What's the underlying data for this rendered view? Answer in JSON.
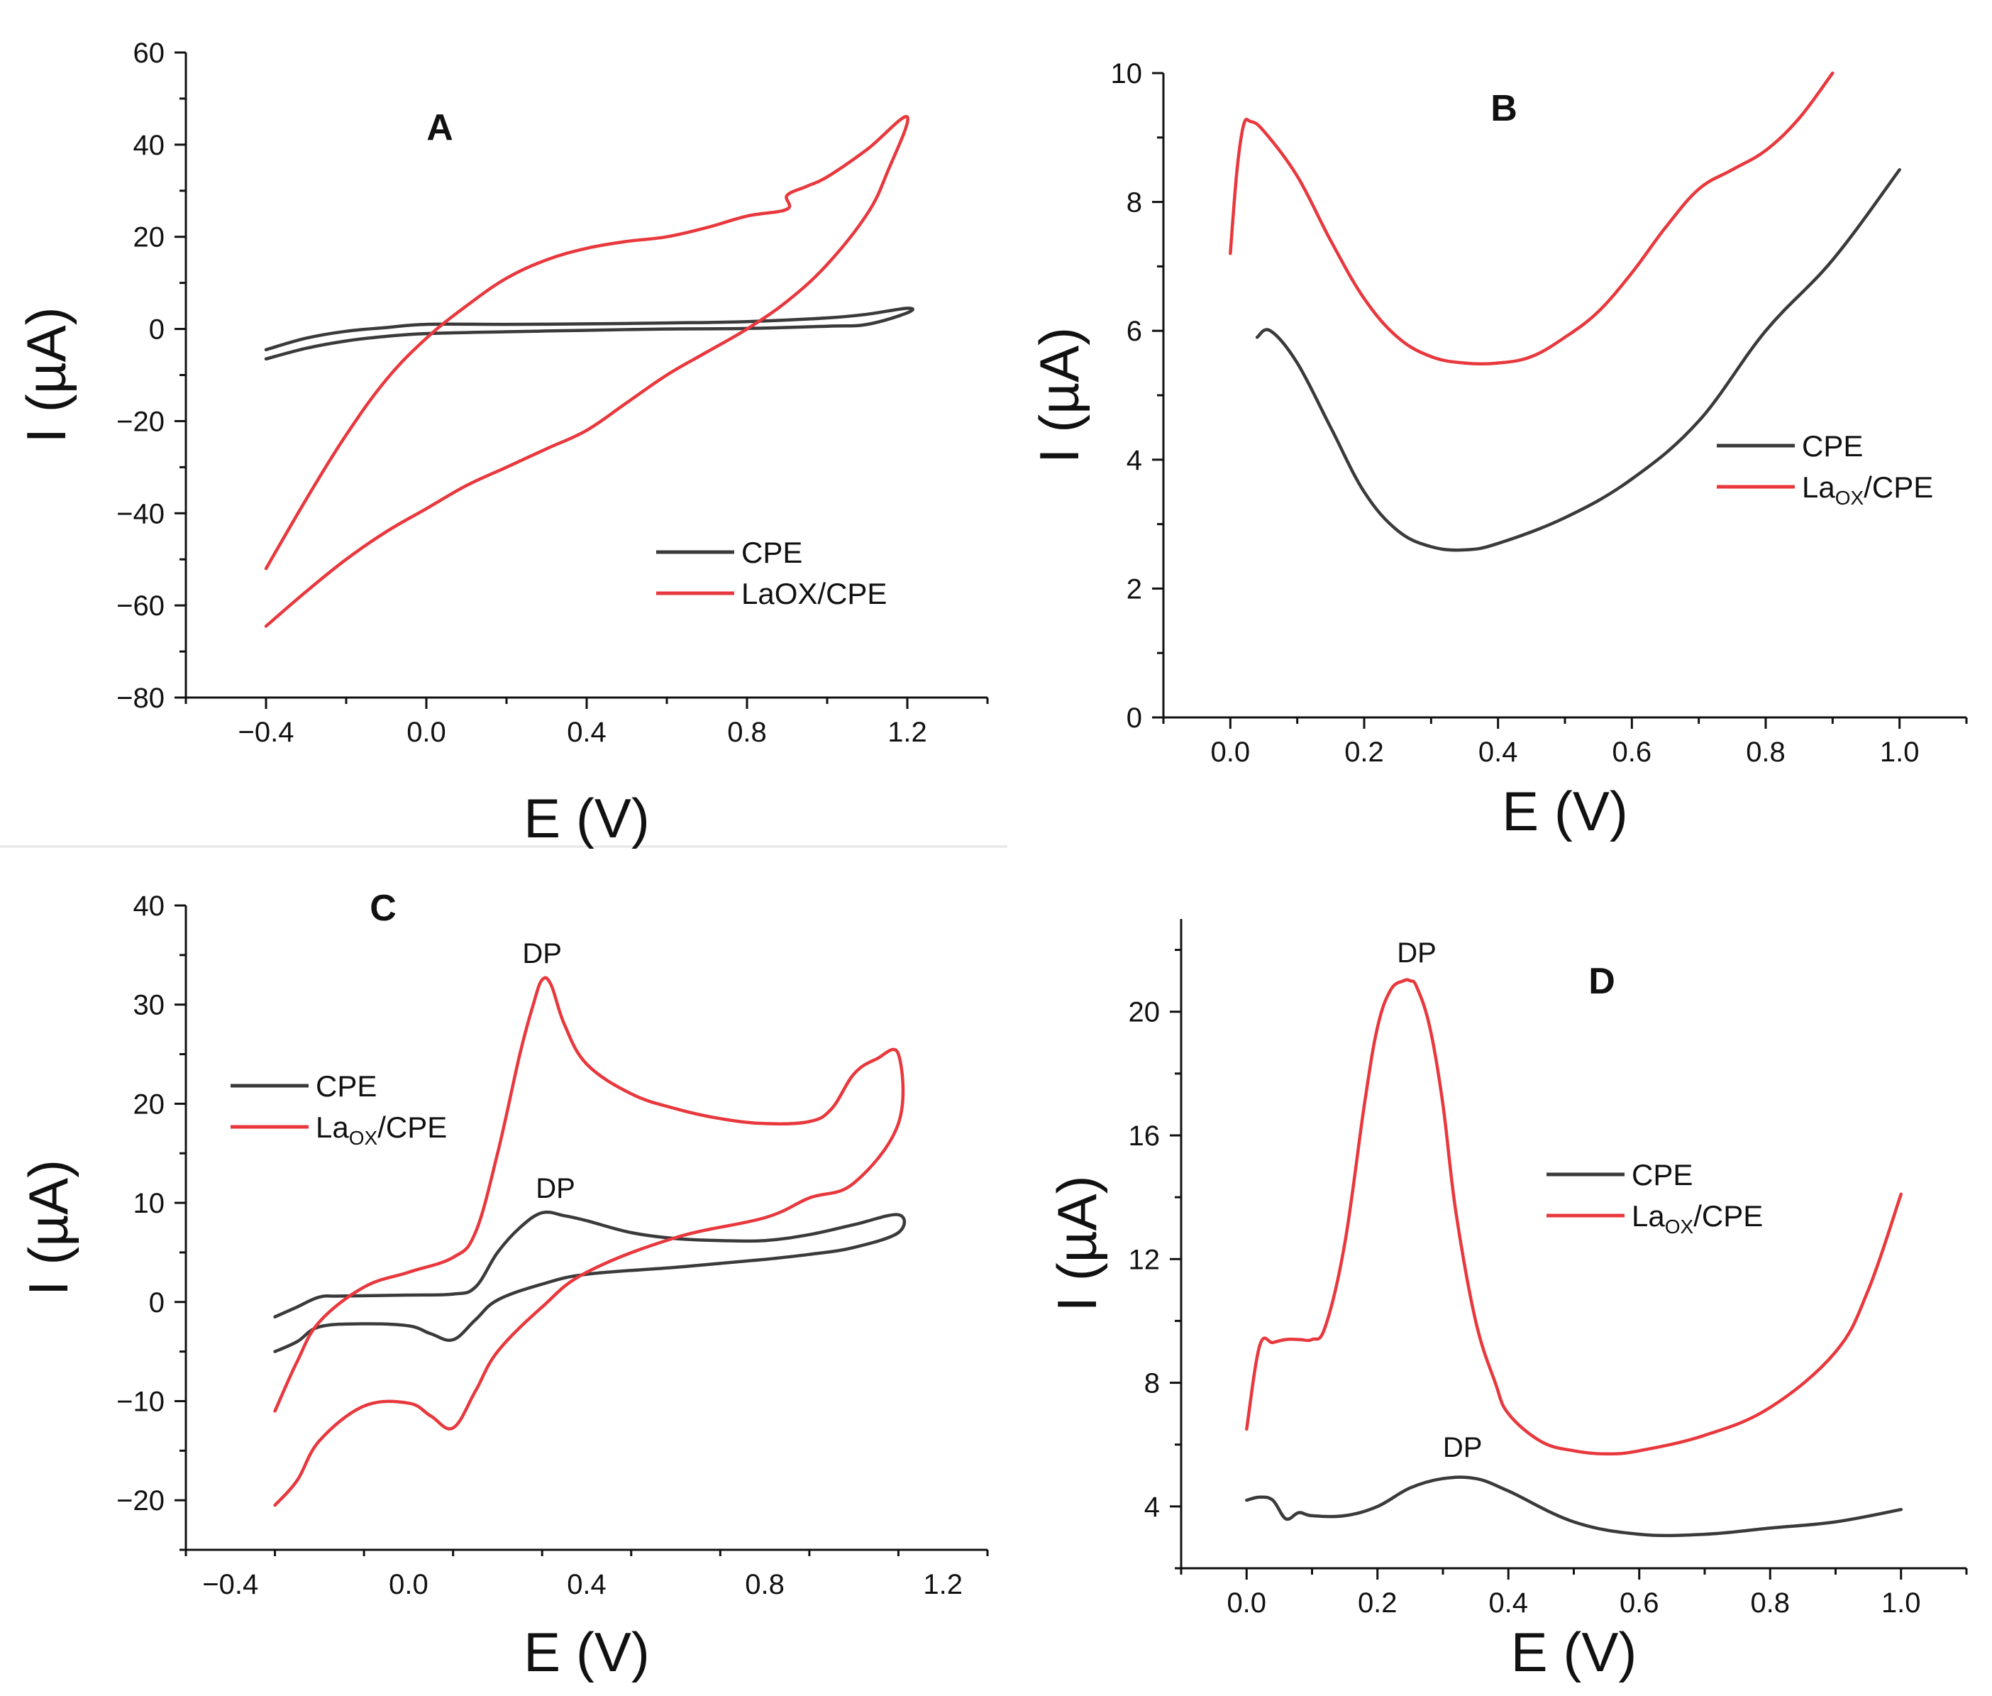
{
  "colors": {
    "CPE": "#3a3a3a",
    "LaOX/CPE": "#e8383d"
  },
  "chart_data": [
    {
      "id": "A",
      "type": "line",
      "panel_label": "A",
      "xlabel": "E (V)",
      "ylabel": "I (µA)",
      "xlim": [
        -0.6,
        1.4
      ],
      "ylim": [
        -80,
        60
      ],
      "xticks": [
        -0.4,
        0.0,
        0.4,
        0.8,
        1.2
      ],
      "xtick_labels": [
        "−0.4",
        "0.0",
        "0.4",
        "0.8",
        "1.2"
      ],
      "yticks": [
        -80,
        -60,
        -40,
        -20,
        0,
        20,
        40,
        60
      ],
      "ytick_labels": [
        "−80",
        "−60",
        "−40",
        "−20",
        "0",
        "20",
        "40",
        "60"
      ],
      "legend": {
        "position": "lower-right",
        "items": [
          {
            "label": "CPE",
            "color": "CPE"
          },
          {
            "label": "LaOX/CPE",
            "color": "LaOX/CPE"
          }
        ]
      },
      "annotations": [],
      "series": [
        {
          "name": "CPE",
          "color": "CPE",
          "x": [
            -0.4,
            -0.3,
            -0.2,
            -0.1,
            0.0,
            0.2,
            0.4,
            0.6,
            0.8,
            1.0,
            1.1,
            1.2,
            1.2,
            1.1,
            1.0,
            0.8,
            0.6,
            0.4,
            0.2,
            0.0,
            -0.1,
            -0.2,
            -0.3,
            -0.4
          ],
          "y": [
            -6.5,
            -4.2,
            -2.6,
            -1.6,
            -1,
            -0.6,
            -0.3,
            0,
            0.1,
            0.6,
            1,
            3.5,
            4.5,
            3.2,
            2.4,
            1.6,
            1.3,
            1.1,
            1.0,
            1.0,
            0.3,
            -0.5,
            -2,
            -4.5
          ]
        },
        {
          "name": "LaOX/CPE",
          "color": "LaOX/CPE",
          "x": [
            -0.4,
            -0.3,
            -0.2,
            -0.1,
            0.0,
            0.1,
            0.2,
            0.3,
            0.4,
            0.5,
            0.6,
            0.7,
            0.8,
            0.9,
            0.9,
            0.95,
            1.0,
            1.1,
            1.2,
            1.15,
            1.1,
            1.0,
            0.9,
            0.8,
            0.7,
            0.6,
            0.5,
            0.4,
            0.3,
            0.2,
            0.1,
            0.0,
            -0.1,
            -0.2,
            -0.3,
            -0.4
          ],
          "y": [
            -52,
            -37,
            -23,
            -11,
            -2,
            5,
            11,
            15,
            17.5,
            19,
            20,
            22,
            24.5,
            26,
            29,
            31,
            33,
            39,
            46,
            34,
            25,
            14,
            6,
            0,
            -5,
            -10,
            -16,
            -22,
            -26,
            -30,
            -34,
            -39,
            -44,
            -50,
            -57,
            -64.5
          ]
        }
      ]
    },
    {
      "id": "B",
      "type": "line",
      "panel_label": "B",
      "xlabel": "E (V)",
      "ylabel": "I (µA)",
      "xlim": [
        -0.1,
        1.1
      ],
      "ylim": [
        0,
        10
      ],
      "xticks": [
        0.0,
        0.2,
        0.4,
        0.6,
        0.8,
        1.0
      ],
      "xtick_labels": [
        "0.0",
        "0.2",
        "0.4",
        "0.6",
        "0.8",
        "1.0"
      ],
      "yticks": [
        0,
        2,
        4,
        6,
        8,
        10
      ],
      "ytick_labels": [
        "0",
        "2",
        "4",
        "6",
        "8",
        "10"
      ],
      "legend": {
        "position": "right",
        "items": [
          {
            "label": "CPE",
            "color": "CPE"
          },
          {
            "label": "La",
            "sub": "OX",
            "suffix": "/CPE",
            "color": "LaOX/CPE"
          }
        ]
      },
      "annotations": [],
      "series": [
        {
          "name": "CPE",
          "color": "CPE",
          "x": [
            0.04,
            0.06,
            0.1,
            0.15,
            0.2,
            0.25,
            0.3,
            0.35,
            0.4,
            0.5,
            0.6,
            0.7,
            0.8,
            0.9,
            1.0
          ],
          "y": [
            5.9,
            6.0,
            5.5,
            4.5,
            3.5,
            2.9,
            2.65,
            2.6,
            2.7,
            3.1,
            3.7,
            4.6,
            6.0,
            7.1,
            8.5
          ]
        },
        {
          "name": "LaOX/CPE",
          "color": "LaOX/CPE",
          "x": [
            0.0,
            0.01,
            0.02,
            0.03,
            0.05,
            0.1,
            0.15,
            0.2,
            0.25,
            0.3,
            0.35,
            0.4,
            0.45,
            0.5,
            0.55,
            0.6,
            0.65,
            0.7,
            0.75,
            0.8,
            0.85,
            0.9
          ],
          "y": [
            7.2,
            8.5,
            9.2,
            9.25,
            9.1,
            8.4,
            7.4,
            6.5,
            5.9,
            5.6,
            5.5,
            5.5,
            5.6,
            5.9,
            6.3,
            6.9,
            7.6,
            8.2,
            8.5,
            8.8,
            9.3,
            10.0
          ]
        }
      ]
    },
    {
      "id": "C",
      "type": "line",
      "panel_label": "C",
      "xlabel": "E (V)",
      "ylabel": "I (µA)",
      "xlim": [
        -0.5,
        1.3
      ],
      "ylim": [
        -25,
        40
      ],
      "xticks": [
        -0.4,
        0.0,
        0.4,
        0.8,
        1.2
      ],
      "xtick_labels": [
        "−0.4",
        "0.0",
        "0.4",
        "0.8",
        "1.2"
      ],
      "yticks": [
        -20,
        -10,
        0,
        10,
        20,
        30,
        40
      ],
      "ytick_labels": [
        "−20",
        "−10",
        "0",
        "10",
        "20",
        "30",
        "40"
      ],
      "legend": {
        "position": "upper-left",
        "items": [
          {
            "label": "CPE",
            "color": "CPE"
          },
          {
            "label": "La",
            "sub": "OX",
            "suffix": "/CPE",
            "color": "LaOX/CPE"
          }
        ]
      },
      "annotations": [
        {
          "text": "DP",
          "x": 0.3,
          "y": 34.2
        },
        {
          "text": "DP",
          "x": 0.33,
          "y": 10.5
        }
      ],
      "series": [
        {
          "name": "CPE",
          "color": "CPE",
          "x": [
            -0.3,
            -0.25,
            -0.2,
            -0.15,
            0.0,
            0.1,
            0.15,
            0.2,
            0.25,
            0.3,
            0.35,
            0.4,
            0.5,
            0.6,
            0.7,
            0.8,
            0.9,
            1.0,
            1.1,
            1.1,
            1.0,
            0.9,
            0.8,
            0.6,
            0.4,
            0.3,
            0.2,
            0.15,
            0.1,
            0.05,
            0.0,
            -0.1,
            -0.2,
            -0.25,
            -0.3
          ],
          "y": [
            -1.5,
            -0.5,
            0.5,
            0.6,
            0.7,
            0.8,
            1.5,
            5,
            7.5,
            9,
            8.7,
            8.2,
            7,
            6.4,
            6.2,
            6.2,
            6.8,
            7.8,
            8.8,
            7,
            5.5,
            4.8,
            4.3,
            3.5,
            2.8,
            1.8,
            0.2,
            -1.8,
            -3.8,
            -3.2,
            -2.4,
            -2.2,
            -2.5,
            -4,
            -5
          ]
        },
        {
          "name": "LaOX/CPE",
          "color": "LaOX/CPE",
          "x": [
            -0.3,
            -0.25,
            -0.2,
            -0.1,
            0.0,
            0.1,
            0.15,
            0.2,
            0.25,
            0.28,
            0.3,
            0.32,
            0.35,
            0.4,
            0.5,
            0.6,
            0.7,
            0.8,
            0.9,
            0.95,
            1.0,
            1.05,
            1.1,
            1.1,
            1.0,
            0.9,
            0.8,
            0.6,
            0.4,
            0.3,
            0.2,
            0.15,
            0.1,
            0.05,
            0.0,
            -0.1,
            -0.2,
            -0.25,
            -0.3
          ],
          "y": [
            -11,
            -6,
            -2,
            1.5,
            3,
            4.5,
            7,
            15,
            25,
            30,
            32.5,
            32,
            28,
            24,
            21,
            19.5,
            18.5,
            18,
            18.2,
            19.5,
            23,
            24.5,
            25,
            18,
            12,
            10.5,
            8.5,
            6.5,
            3,
            -0.5,
            -5,
            -9,
            -12.7,
            -11.5,
            -10.2,
            -10.5,
            -14,
            -18,
            -20.5
          ]
        }
      ]
    },
    {
      "id": "D",
      "type": "line",
      "panel_label": "D",
      "xlabel": "E (V)",
      "ylabel": "I (µA)",
      "xlim": [
        -0.1,
        1.1
      ],
      "ylim": [
        2,
        23
      ],
      "xticks": [
        0.0,
        0.2,
        0.4,
        0.6,
        0.8,
        1.0
      ],
      "xtick_labels": [
        "0.0",
        "0.2",
        "0.4",
        "0.6",
        "0.8",
        "1.0"
      ],
      "yticks": [
        4,
        8,
        12,
        16,
        20
      ],
      "ytick_labels": [
        "4",
        "8",
        "12",
        "16",
        "20"
      ],
      "legend": {
        "position": "center-right",
        "items": [
          {
            "label": "CPE",
            "color": "CPE"
          },
          {
            "label": "La",
            "sub": "OX",
            "suffix": "/CPE",
            "color": "LaOX/CPE"
          }
        ]
      },
      "annotations": [
        {
          "text": "DP",
          "x": 0.26,
          "y": 21.6
        },
        {
          "text": "DP",
          "x": 0.33,
          "y": 5.6
        }
      ],
      "series": [
        {
          "name": "CPE",
          "color": "CPE",
          "x": [
            0.0,
            0.02,
            0.04,
            0.06,
            0.08,
            0.1,
            0.15,
            0.2,
            0.25,
            0.3,
            0.35,
            0.4,
            0.5,
            0.6,
            0.7,
            0.8,
            0.9,
            1.0
          ],
          "y": [
            4.2,
            4.3,
            4.2,
            3.6,
            3.8,
            3.7,
            3.7,
            4.0,
            4.6,
            4.9,
            4.9,
            4.5,
            3.5,
            3.1,
            3.1,
            3.3,
            3.5,
            3.9
          ]
        },
        {
          "name": "LaOX/CPE",
          "color": "LaOX/CPE",
          "x": [
            0.0,
            0.02,
            0.04,
            0.06,
            0.08,
            0.1,
            0.12,
            0.15,
            0.18,
            0.2,
            0.22,
            0.24,
            0.25,
            0.26,
            0.28,
            0.3,
            0.32,
            0.35,
            0.38,
            0.4,
            0.45,
            0.5,
            0.55,
            0.6,
            0.7,
            0.8,
            0.9,
            0.95,
            1.0
          ],
          "y": [
            6.5,
            9.2,
            9.3,
            9.4,
            9.4,
            9.4,
            9.8,
            12.5,
            17,
            19.5,
            20.7,
            21,
            21,
            20.8,
            19.5,
            17,
            13.5,
            10,
            8,
            7,
            6.1,
            5.8,
            5.7,
            5.8,
            6.3,
            7.2,
            9.0,
            11,
            14.1
          ]
        }
      ]
    }
  ]
}
